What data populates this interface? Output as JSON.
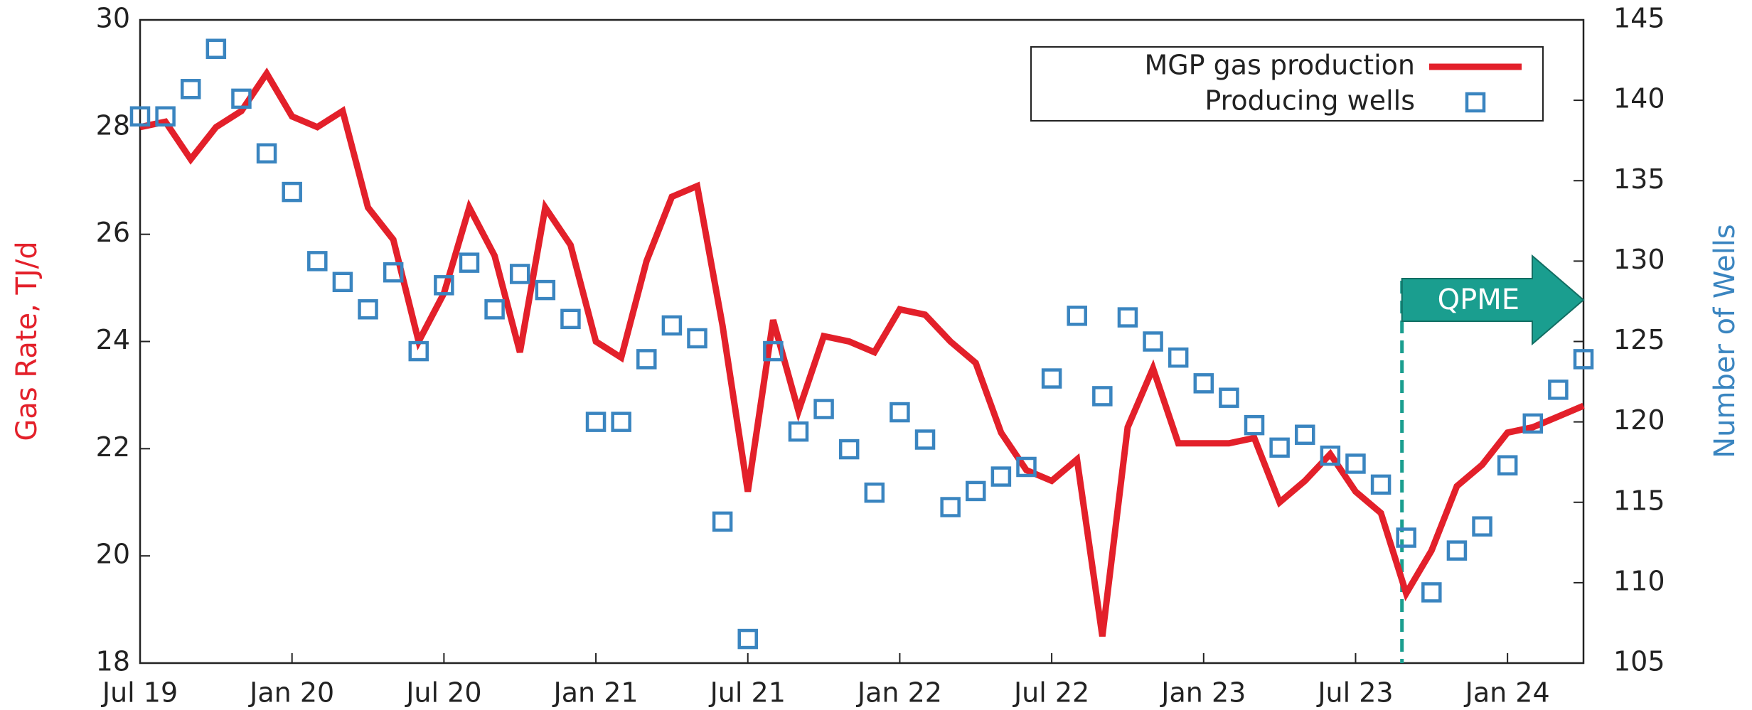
{
  "chart_data": {
    "type": "line",
    "ylabel": "Gas Rate, TJ/d",
    "y2label": "Number of Wells",
    "categories": [
      "Jul 19",
      null,
      null,
      null,
      null,
      null,
      "Jan 20",
      null,
      null,
      null,
      null,
      null,
      "Jul 20",
      null,
      null,
      null,
      null,
      null,
      "Jan 21",
      null,
      null,
      null,
      null,
      null,
      "Jul 21",
      null,
      null,
      null,
      null,
      null,
      "Jan 22",
      null,
      null,
      null,
      null,
      null,
      "Jul 22",
      null,
      null,
      null,
      null,
      null,
      "Jan 23",
      null,
      null,
      null,
      null,
      null,
      "Jul 23",
      null,
      null,
      null,
      null,
      null,
      "Jan 24",
      null,
      null,
      null
    ],
    "series": [
      {
        "name": "MGP gas production",
        "color": "#e3202a",
        "kind": "line",
        "values": [
          28.0,
          28.1,
          27.4,
          28.0,
          28.3,
          29.0,
          28.2,
          28.0,
          28.3,
          26.5,
          25.9,
          24.0,
          24.9,
          26.5,
          25.6,
          23.8,
          26.5,
          25.8,
          24.0,
          23.7,
          25.5,
          26.7,
          26.9,
          24.3,
          21.2,
          24.4,
          22.7,
          24.1,
          24.0,
          23.8,
          24.6,
          24.5,
          24.0,
          23.6,
          22.3,
          21.6,
          21.4,
          21.8,
          18.5,
          22.4,
          23.5,
          22.1,
          22.1,
          22.1,
          22.2,
          21.0,
          21.4,
          21.9,
          21.2,
          20.8,
          19.3,
          20.1,
          21.3,
          21.7,
          22.3,
          22.4,
          22.6,
          22.8
        ]
      },
      {
        "name": "Producing wells",
        "color": "#3a85c0",
        "kind": "scatter",
        "axis": "y2",
        "values": [
          139,
          139,
          140.7,
          143.2,
          140.1,
          136.7,
          134.3,
          130,
          128.7,
          127,
          129.3,
          124.4,
          128.5,
          129.9,
          127,
          129.2,
          128.2,
          126.4,
          120,
          120,
          123.9,
          126,
          125.2,
          113.8,
          106.5,
          124.4,
          119.4,
          120.8,
          118.3,
          115.6,
          120.6,
          118.9,
          114.7,
          115.7,
          116.6,
          117.2,
          122.7,
          126.6,
          121.6,
          126.5,
          125,
          124,
          122.4,
          121.5,
          119.8,
          118.4,
          119.2,
          117.9,
          117.4,
          116.1,
          112.8,
          109.4,
          112,
          113.5,
          117.3,
          119.9,
          122,
          123.9
        ]
      }
    ],
    "ylim": [
      18,
      30
    ],
    "yticks": [
      18,
      20,
      22,
      24,
      26,
      28,
      30
    ],
    "y2lim": [
      105,
      145
    ],
    "y2ticks": [
      105,
      110,
      115,
      120,
      125,
      130,
      135,
      140,
      145
    ],
    "legend": "upper right",
    "annotations": [
      {
        "text": "QPME",
        "color": "#1a9e8f"
      }
    ]
  }
}
